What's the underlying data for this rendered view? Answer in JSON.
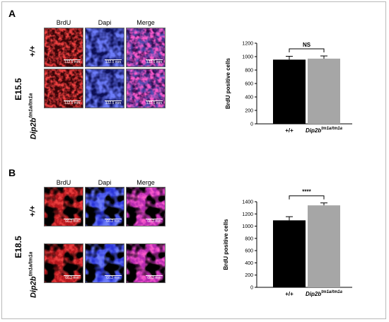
{
  "figure": {
    "panel_a": {
      "letter": "A",
      "stage": "E15.5",
      "columns": [
        "BrdU",
        "Dapi",
        "Merge"
      ],
      "row_1_genotype": "+/+",
      "row_2_genotype_base": "Dip2b",
      "row_2_genotype_sup": "tm1a/tm1a",
      "scale_bar": "132.5 mm"
    },
    "panel_b": {
      "letter": "B",
      "stage": "E18.5",
      "columns": [
        "BrdU",
        "Dapi",
        "Merge"
      ],
      "row_1_genotype": "+/+",
      "row_2_genotype_base": "Dip2b",
      "row_2_genotype_sup": "tm1a/tm1a",
      "scale_bar": "66.2 mm"
    }
  },
  "chart_data": [
    {
      "type": "bar",
      "categories": [
        "+/+",
        "Dip2b tm1a/tm1a"
      ],
      "category_labels": [
        {
          "base": "+/+",
          "sup": ""
        },
        {
          "base": "Dip2b",
          "sup": "tm1a/tm1a"
        }
      ],
      "values": [
        955,
        970
      ],
      "errors": [
        50,
        40
      ],
      "colors": [
        "#000000",
        "#a6a6a6"
      ],
      "ylabel": "BrdU positive cells",
      "yticks": [
        0,
        200,
        400,
        600,
        800,
        1000,
        1200
      ],
      "ylim": [
        0,
        1200
      ],
      "significance": "NS"
    },
    {
      "type": "bar",
      "categories": [
        "+/+",
        "Dip2b tm1a/tm1a"
      ],
      "category_labels": [
        {
          "base": "+/+",
          "sup": ""
        },
        {
          "base": "Dip2b",
          "sup": "tm1a/tm1a"
        }
      ],
      "values": [
        1095,
        1340
      ],
      "errors": [
        60,
        40
      ],
      "colors": [
        "#000000",
        "#a6a6a6"
      ],
      "ylabel": "BrdU positive cells",
      "yticks": [
        0,
        200,
        400,
        600,
        800,
        1000,
        1200,
        1400
      ],
      "ylim": [
        0,
        1400
      ],
      "significance": "****"
    }
  ]
}
